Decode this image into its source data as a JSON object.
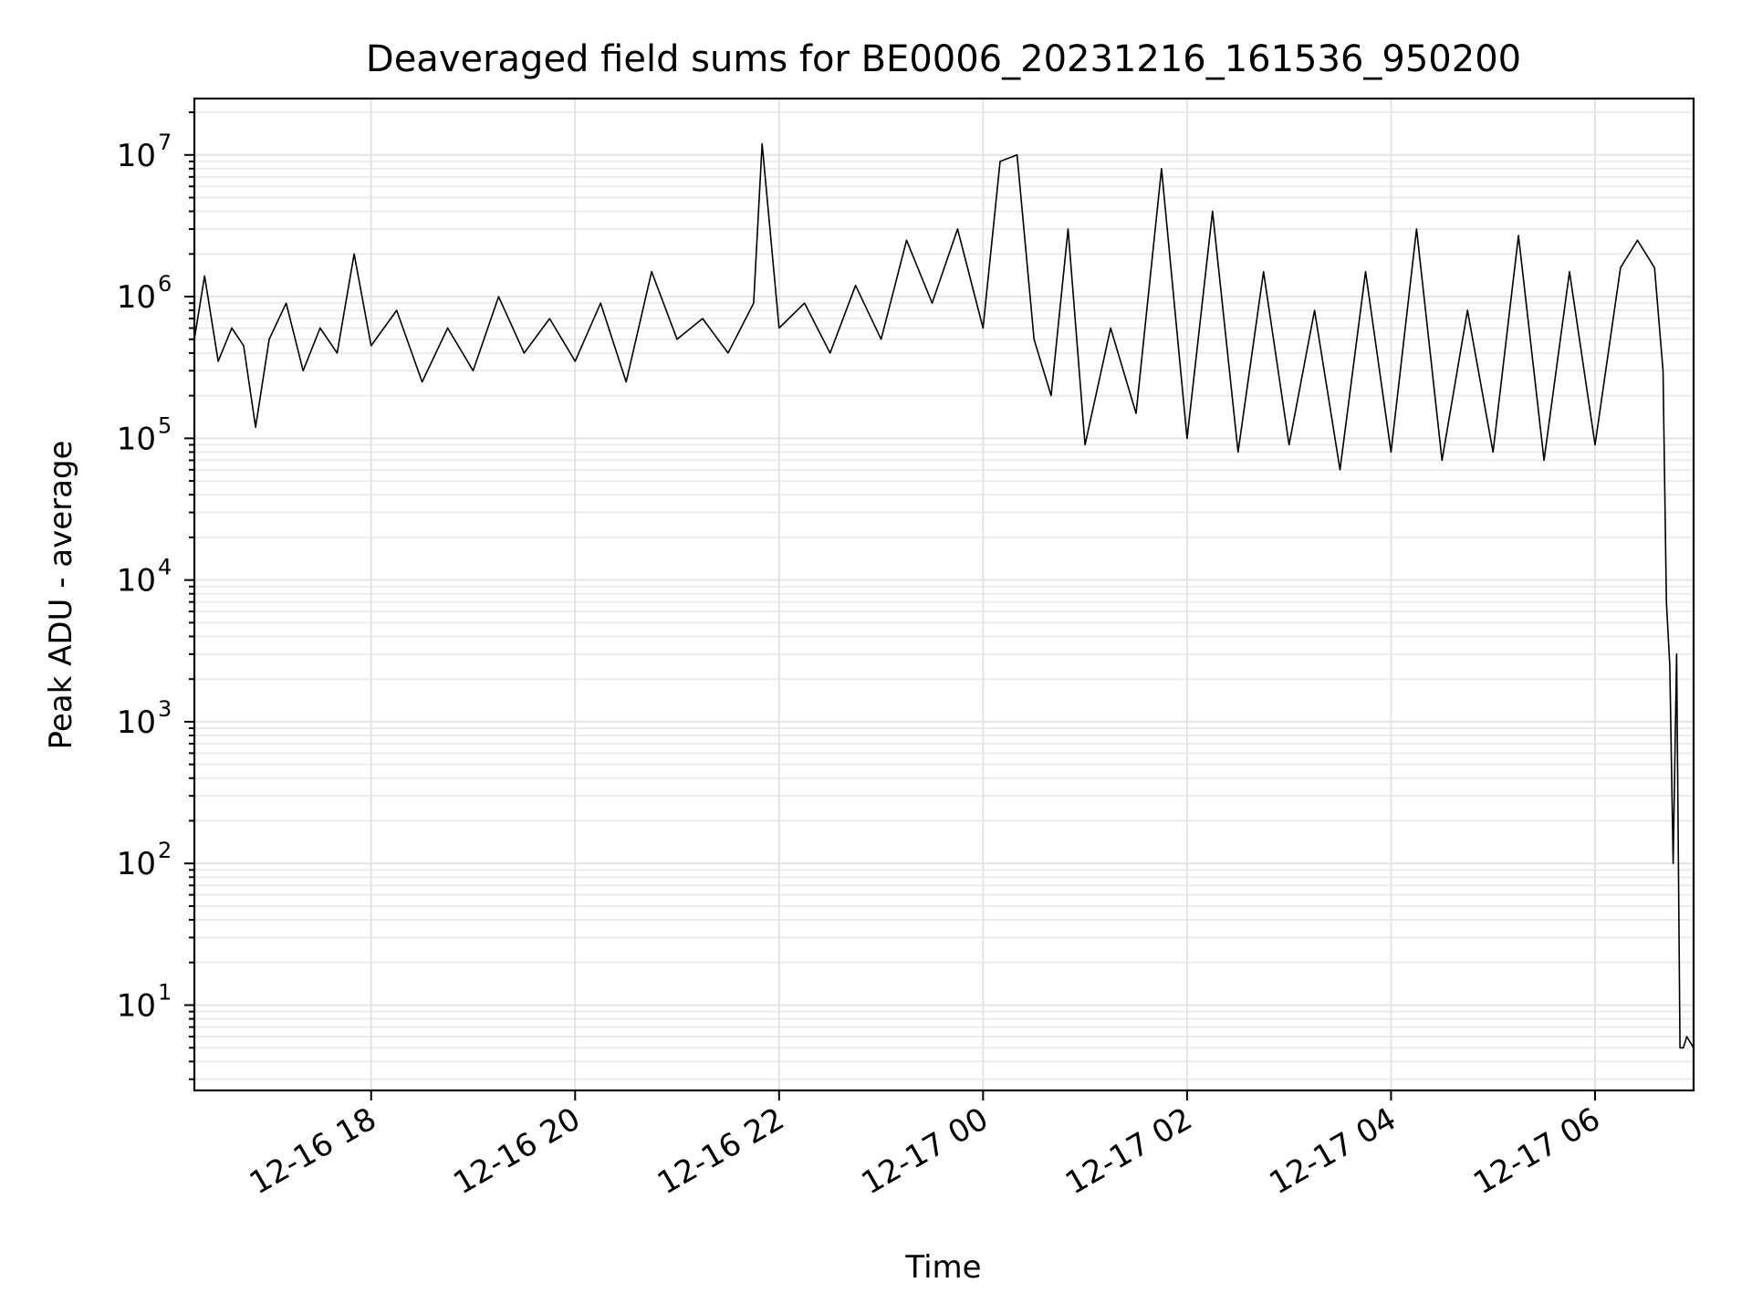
{
  "chart_data": {
    "type": "line",
    "title": "Deaveraged field sums for BE0006_20231216_161536_950200",
    "xlabel": "Time",
    "ylabel": "Peak ADU - average",
    "x_scale": "time",
    "y_scale": "log",
    "xlim": [
      "2023-12-16 16:16",
      "2023-12-17 06:58"
    ],
    "ylim": [
      2.5,
      25000000
    ],
    "x_ticks": [
      {
        "value": "2023-12-16 18:00",
        "label": "12-16 18"
      },
      {
        "value": "2023-12-16 20:00",
        "label": "12-16 20"
      },
      {
        "value": "2023-12-16 22:00",
        "label": "12-16 22"
      },
      {
        "value": "2023-12-17 00:00",
        "label": "12-17 00"
      },
      {
        "value": "2023-12-17 02:00",
        "label": "12-17 02"
      },
      {
        "value": "2023-12-17 04:00",
        "label": "12-17 04"
      },
      {
        "value": "2023-12-17 06:00",
        "label": "12-17 06"
      }
    ],
    "y_ticks": [
      {
        "value": 10,
        "base": "10",
        "exp": "1"
      },
      {
        "value": 100,
        "base": "10",
        "exp": "2"
      },
      {
        "value": 1000,
        "base": "10",
        "exp": "3"
      },
      {
        "value": 10000,
        "base": "10",
        "exp": "4"
      },
      {
        "value": 100000,
        "base": "10",
        "exp": "5"
      },
      {
        "value": 1000000,
        "base": "10",
        "exp": "6"
      },
      {
        "value": 10000000,
        "base": "10",
        "exp": "7"
      }
    ],
    "grid": true,
    "line_color": "#000000",
    "series": [
      {
        "x": [
          "2023-12-16 16:16",
          "2023-12-16 16:22",
          "2023-12-16 16:30",
          "2023-12-16 16:38",
          "2023-12-16 16:45",
          "2023-12-16 16:52",
          "2023-12-16 17:00",
          "2023-12-16 17:10",
          "2023-12-16 17:20",
          "2023-12-16 17:30",
          "2023-12-16 17:40",
          "2023-12-16 17:50",
          "2023-12-16 18:00",
          "2023-12-16 18:15",
          "2023-12-16 18:30",
          "2023-12-16 18:45",
          "2023-12-16 19:00",
          "2023-12-16 19:15",
          "2023-12-16 19:30",
          "2023-12-16 19:45",
          "2023-12-16 20:00",
          "2023-12-16 20:15",
          "2023-12-16 20:30",
          "2023-12-16 20:45",
          "2023-12-16 21:00",
          "2023-12-16 21:15",
          "2023-12-16 21:30",
          "2023-12-16 21:45",
          "2023-12-16 21:50",
          "2023-12-16 22:00",
          "2023-12-16 22:15",
          "2023-12-16 22:30",
          "2023-12-16 22:45",
          "2023-12-16 23:00",
          "2023-12-16 23:15",
          "2023-12-16 23:30",
          "2023-12-16 23:45",
          "2023-12-17 00:00",
          "2023-12-17 00:10",
          "2023-12-17 00:20",
          "2023-12-17 00:30",
          "2023-12-17 00:40",
          "2023-12-17 00:50",
          "2023-12-17 01:00",
          "2023-12-17 01:15",
          "2023-12-17 01:30",
          "2023-12-17 01:45",
          "2023-12-17 02:00",
          "2023-12-17 02:15",
          "2023-12-17 02:30",
          "2023-12-17 02:45",
          "2023-12-17 03:00",
          "2023-12-17 03:15",
          "2023-12-17 03:30",
          "2023-12-17 03:45",
          "2023-12-17 04:00",
          "2023-12-17 04:15",
          "2023-12-17 04:30",
          "2023-12-17 04:45",
          "2023-12-17 05:00",
          "2023-12-17 05:15",
          "2023-12-17 05:30",
          "2023-12-17 05:45",
          "2023-12-17 06:00",
          "2023-12-17 06:15",
          "2023-12-17 06:25",
          "2023-12-17 06:35",
          "2023-12-17 06:40",
          "2023-12-17 06:42",
          "2023-12-17 06:44",
          "2023-12-17 06:46",
          "2023-12-17 06:48",
          "2023-12-17 06:50",
          "2023-12-17 06:52",
          "2023-12-17 06:54",
          "2023-12-17 06:58"
        ],
        "values": [
          500000,
          1400000,
          350000,
          600000,
          450000,
          120000,
          500000,
          900000,
          300000,
          600000,
          400000,
          2000000,
          450000,
          800000,
          250000,
          600000,
          300000,
          1000000,
          400000,
          700000,
          350000,
          900000,
          250000,
          1500000,
          500000,
          700000,
          400000,
          900000,
          12000000,
          600000,
          900000,
          400000,
          1200000,
          500000,
          2500000,
          900000,
          3000000,
          600000,
          9000000,
          10000000,
          500000,
          200000,
          3000000,
          90000,
          600000,
          150000,
          8000000,
          100000,
          4000000,
          80000,
          1500000,
          90000,
          800000,
          60000,
          1500000,
          80000,
          3000000,
          70000,
          800000,
          80000,
          2700000,
          70000,
          1500000,
          90000,
          1600000,
          2500000,
          1600000,
          300000,
          7000,
          2500,
          100,
          3000,
          5,
          5,
          6,
          5
        ]
      }
    ]
  }
}
